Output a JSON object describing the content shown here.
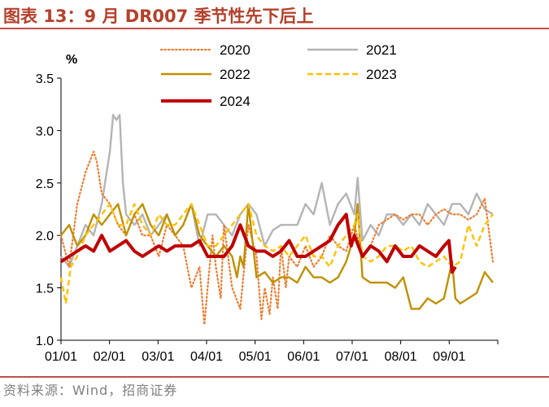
{
  "header": {
    "title": "图表 13：9 月 DR007 季节性先下后上"
  },
  "footer": {
    "source": "资料来源：Wind，招商证券"
  },
  "chart_data": {
    "type": "line",
    "yunit": "%",
    "ylim": [
      1.0,
      3.5
    ],
    "yticks": [
      "1.0",
      "1.5",
      "2.0",
      "2.5",
      "3.0",
      "3.5"
    ],
    "xticks": [
      "01/01",
      "02/01",
      "03/01",
      "04/01",
      "05/01",
      "06/01",
      "07/01",
      "08/01",
      "09/01"
    ],
    "xlim_days": [
      0,
      268
    ],
    "x_note": "x = day of year (0 = 01/01)",
    "legend_position": "top",
    "colors": {
      "2020": "#ed7d31",
      "2021": "#b4b4b4",
      "2022": "#bf9000",
      "2023": "#ffc000",
      "2024": "#c00000"
    },
    "series": [
      {
        "name": "2020",
        "style": "dotted",
        "x": [
          0,
          5,
          10,
          15,
          20,
          22,
          25,
          30,
          35,
          40,
          45,
          50,
          55,
          60,
          65,
          70,
          75,
          80,
          85,
          88,
          90,
          93,
          95,
          98,
          100,
          105,
          110,
          115,
          120,
          123,
          125,
          128,
          130,
          133,
          135,
          138,
          140,
          145,
          150,
          155,
          160,
          165,
          170,
          175,
          180,
          185,
          190,
          195,
          200,
          205,
          210,
          215,
          220,
          225,
          230,
          235,
          240,
          245,
          250,
          255,
          260,
          265
        ],
        "y": [
          2.0,
          1.7,
          2.3,
          2.6,
          2.8,
          2.7,
          2.4,
          2.3,
          2.1,
          2.0,
          2.2,
          2.0,
          2.0,
          1.8,
          2.1,
          2.0,
          1.9,
          1.5,
          1.7,
          1.15,
          1.5,
          2.0,
          1.7,
          1.4,
          2.1,
          1.5,
          1.3,
          2.1,
          1.8,
          1.2,
          1.5,
          1.25,
          1.6,
          1.3,
          1.9,
          1.5,
          1.8,
          1.7,
          1.9,
          1.7,
          1.8,
          2.0,
          1.9,
          1.85,
          2.1,
          1.8,
          1.9,
          2.1,
          2.15,
          2.2,
          2.15,
          2.2,
          2.2,
          2.1,
          2.2,
          2.25,
          2.2,
          2.2,
          2.15,
          2.2,
          2.35,
          1.75
        ]
      },
      {
        "name": "2021",
        "style": "solid",
        "x": [
          0,
          5,
          10,
          15,
          20,
          25,
          30,
          32,
          34,
          36,
          38,
          40,
          45,
          50,
          55,
          60,
          65,
          70,
          75,
          80,
          85,
          90,
          95,
          100,
          105,
          110,
          115,
          120,
          125,
          130,
          135,
          140,
          145,
          150,
          155,
          160,
          165,
          170,
          175,
          180,
          182,
          185,
          190,
          195,
          200,
          205,
          210,
          215,
          220,
          225,
          230,
          235,
          240,
          245,
          250,
          255,
          260,
          265
        ],
        "y": [
          1.8,
          1.7,
          1.9,
          2.1,
          2.0,
          2.3,
          2.8,
          3.15,
          3.1,
          3.15,
          2.5,
          2.2,
          2.1,
          2.2,
          2.0,
          2.1,
          2.2,
          2.0,
          2.1,
          2.3,
          1.9,
          2.2,
          2.2,
          2.1,
          2.0,
          2.2,
          2.3,
          2.2,
          1.9,
          2.05,
          2.1,
          2.1,
          2.1,
          2.3,
          2.2,
          2.5,
          2.1,
          2.3,
          2.4,
          2.2,
          2.55,
          1.95,
          2.1,
          2.0,
          2.2,
          2.2,
          2.1,
          2.2,
          2.1,
          2.3,
          2.2,
          2.1,
          2.3,
          2.3,
          2.2,
          2.4,
          2.25,
          2.2
        ]
      },
      {
        "name": "2022",
        "style": "solid",
        "x": [
          0,
          5,
          10,
          15,
          20,
          25,
          30,
          35,
          40,
          45,
          50,
          55,
          60,
          65,
          70,
          75,
          80,
          85,
          90,
          95,
          100,
          105,
          108,
          110,
          112,
          115,
          120,
          125,
          130,
          135,
          140,
          145,
          150,
          155,
          160,
          165,
          170,
          175,
          180,
          182,
          185,
          190,
          195,
          200,
          205,
          210,
          215,
          220,
          225,
          230,
          235,
          240,
          242,
          245,
          250,
          255,
          260,
          265
        ],
        "y": [
          2.0,
          2.1,
          1.9,
          2.0,
          2.2,
          2.1,
          2.2,
          2.3,
          2.0,
          2.2,
          2.3,
          2.1,
          2.0,
          2.2,
          2.0,
          2.1,
          2.3,
          2.0,
          1.9,
          1.8,
          1.9,
          1.8,
          1.6,
          1.8,
          1.7,
          2.3,
          1.6,
          1.65,
          1.55,
          1.6,
          1.6,
          1.55,
          1.7,
          1.6,
          1.6,
          1.55,
          1.6,
          1.75,
          2.0,
          2.3,
          1.6,
          1.55,
          1.55,
          1.55,
          1.5,
          1.6,
          1.3,
          1.3,
          1.4,
          1.35,
          1.4,
          1.75,
          1.4,
          1.35,
          1.4,
          1.45,
          1.65,
          1.55
        ]
      },
      {
        "name": "2023",
        "style": "dashed",
        "x": [
          0,
          3,
          6,
          10,
          15,
          20,
          25,
          30,
          35,
          40,
          45,
          50,
          55,
          60,
          65,
          70,
          75,
          80,
          85,
          90,
          95,
          100,
          105,
          110,
          115,
          120,
          125,
          130,
          135,
          140,
          145,
          150,
          155,
          160,
          165,
          170,
          175,
          180,
          182,
          185,
          190,
          195,
          200,
          205,
          210,
          215,
          220,
          225,
          230,
          235,
          240,
          245,
          250,
          255,
          260,
          265
        ],
        "y": [
          1.6,
          1.35,
          1.7,
          1.8,
          2.0,
          2.1,
          2.2,
          2.3,
          2.1,
          2.1,
          2.3,
          2.1,
          2.0,
          2.2,
          2.1,
          2.1,
          2.2,
          2.3,
          2.1,
          1.9,
          1.9,
          2.0,
          2.1,
          2.2,
          2.3,
          2.0,
          1.9,
          1.85,
          1.9,
          1.8,
          1.9,
          2.0,
          1.8,
          1.8,
          1.7,
          1.9,
          2.0,
          2.1,
          2.2,
          1.8,
          1.75,
          1.8,
          1.9,
          1.9,
          1.85,
          1.9,
          1.75,
          1.7,
          1.75,
          1.8,
          1.7,
          1.75,
          2.1,
          1.9,
          2.1,
          2.2
        ]
      },
      {
        "name": "2024",
        "style": "thick",
        "x": [
          0,
          5,
          10,
          15,
          20,
          25,
          30,
          35,
          40,
          45,
          50,
          55,
          60,
          65,
          70,
          75,
          80,
          85,
          90,
          95,
          100,
          105,
          110,
          115,
          120,
          125,
          130,
          135,
          140,
          145,
          150,
          155,
          160,
          165,
          170,
          175,
          178,
          180,
          185,
          190,
          195,
          200,
          205,
          210,
          215,
          220,
          225,
          230,
          235,
          238,
          240,
          242
        ],
        "y": [
          1.75,
          1.8,
          1.85,
          1.9,
          1.85,
          2.0,
          1.85,
          1.9,
          1.95,
          1.85,
          1.8,
          1.85,
          1.9,
          1.85,
          1.9,
          1.9,
          1.9,
          1.95,
          1.8,
          1.8,
          1.8,
          1.9,
          2.1,
          1.9,
          1.85,
          1.85,
          1.8,
          1.85,
          1.95,
          1.8,
          1.8,
          1.85,
          1.9,
          1.95,
          2.1,
          2.2,
          1.9,
          2.0,
          1.8,
          1.9,
          1.85,
          1.75,
          1.9,
          1.8,
          1.8,
          1.9,
          1.85,
          1.8,
          1.9,
          1.95,
          1.65,
          1.7
        ]
      }
    ]
  }
}
